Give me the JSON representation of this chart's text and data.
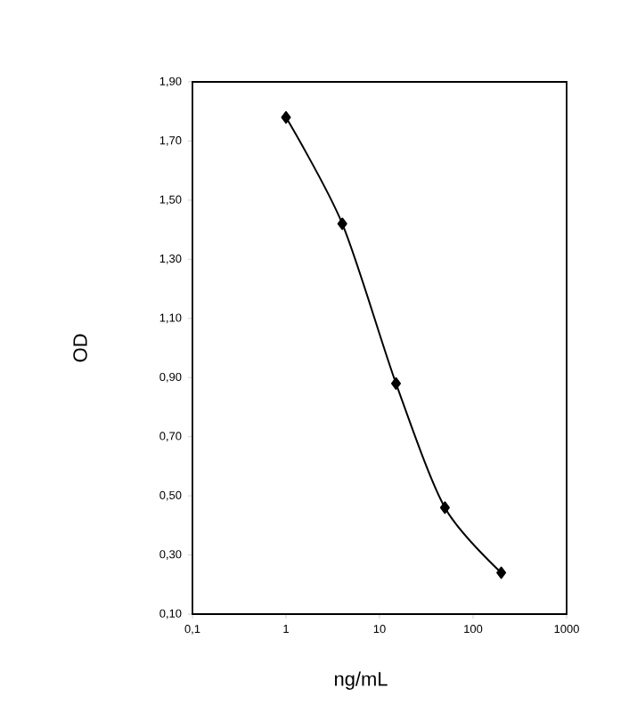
{
  "chart_data": {
    "type": "line",
    "xlabel": "ng/mL",
    "ylabel": "OD",
    "log": "x",
    "marker": "diamond",
    "color": "#000000",
    "x": [
      1,
      4,
      15,
      50,
      200
    ],
    "values": [
      1.78,
      1.42,
      0.88,
      0.46,
      0.24
    ],
    "xlim": [
      0.1,
      1000
    ],
    "xticks": [
      {
        "value": 0.1,
        "label": "0,1"
      },
      {
        "value": 1,
        "label": "1"
      },
      {
        "value": 10,
        "label": "10"
      },
      {
        "value": 100,
        "label": "100"
      },
      {
        "value": 1000,
        "label": "1000"
      }
    ],
    "ylim": [
      0.1,
      1.9
    ],
    "yticks": [
      {
        "value": 0.1,
        "label": "0,10"
      },
      {
        "value": 0.3,
        "label": "0,30"
      },
      {
        "value": 0.5,
        "label": "0,50"
      },
      {
        "value": 0.7,
        "label": "0,70"
      },
      {
        "value": 0.9,
        "label": "0,90"
      },
      {
        "value": 1.1,
        "label": "1,10"
      },
      {
        "value": 1.3,
        "label": "1,30"
      },
      {
        "value": 1.5,
        "label": "1,50"
      },
      {
        "value": 1.7,
        "label": "1,70"
      },
      {
        "value": 1.9,
        "label": "1,90"
      }
    ]
  }
}
